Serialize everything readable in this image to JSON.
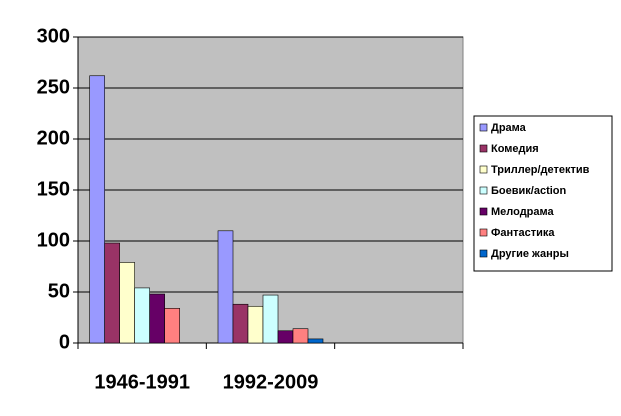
{
  "chart_data": {
    "type": "bar",
    "categories": [
      "1946-1991",
      "1992-2009",
      null
    ],
    "series": [
      {
        "name": "Драма",
        "color": "#9999ff",
        "values": [
          262,
          110,
          null
        ]
      },
      {
        "name": "Комедия",
        "color": "#993366",
        "values": [
          98,
          38,
          null
        ]
      },
      {
        "name": "Триллер/детектив",
        "color": "#ffffcc",
        "values": [
          79,
          36,
          null
        ]
      },
      {
        "name": "Боевик/action",
        "color": "#ccffff",
        "values": [
          54,
          47,
          null
        ]
      },
      {
        "name": "Мелодрама",
        "color": "#660066",
        "values": [
          48,
          12,
          null
        ]
      },
      {
        "name": "Фантастика",
        "color": "#ff8080",
        "values": [
          34,
          14,
          null
        ]
      },
      {
        "name": "Другие жанры",
        "color": "#0066cc",
        "values": [
          0,
          4,
          null
        ]
      }
    ],
    "ylim": [
      0,
      300
    ],
    "yticks": [
      0,
      50,
      100,
      150,
      200,
      250,
      300
    ],
    "grid": true,
    "legend": "right",
    "plot_background": "#c0c0c0"
  }
}
